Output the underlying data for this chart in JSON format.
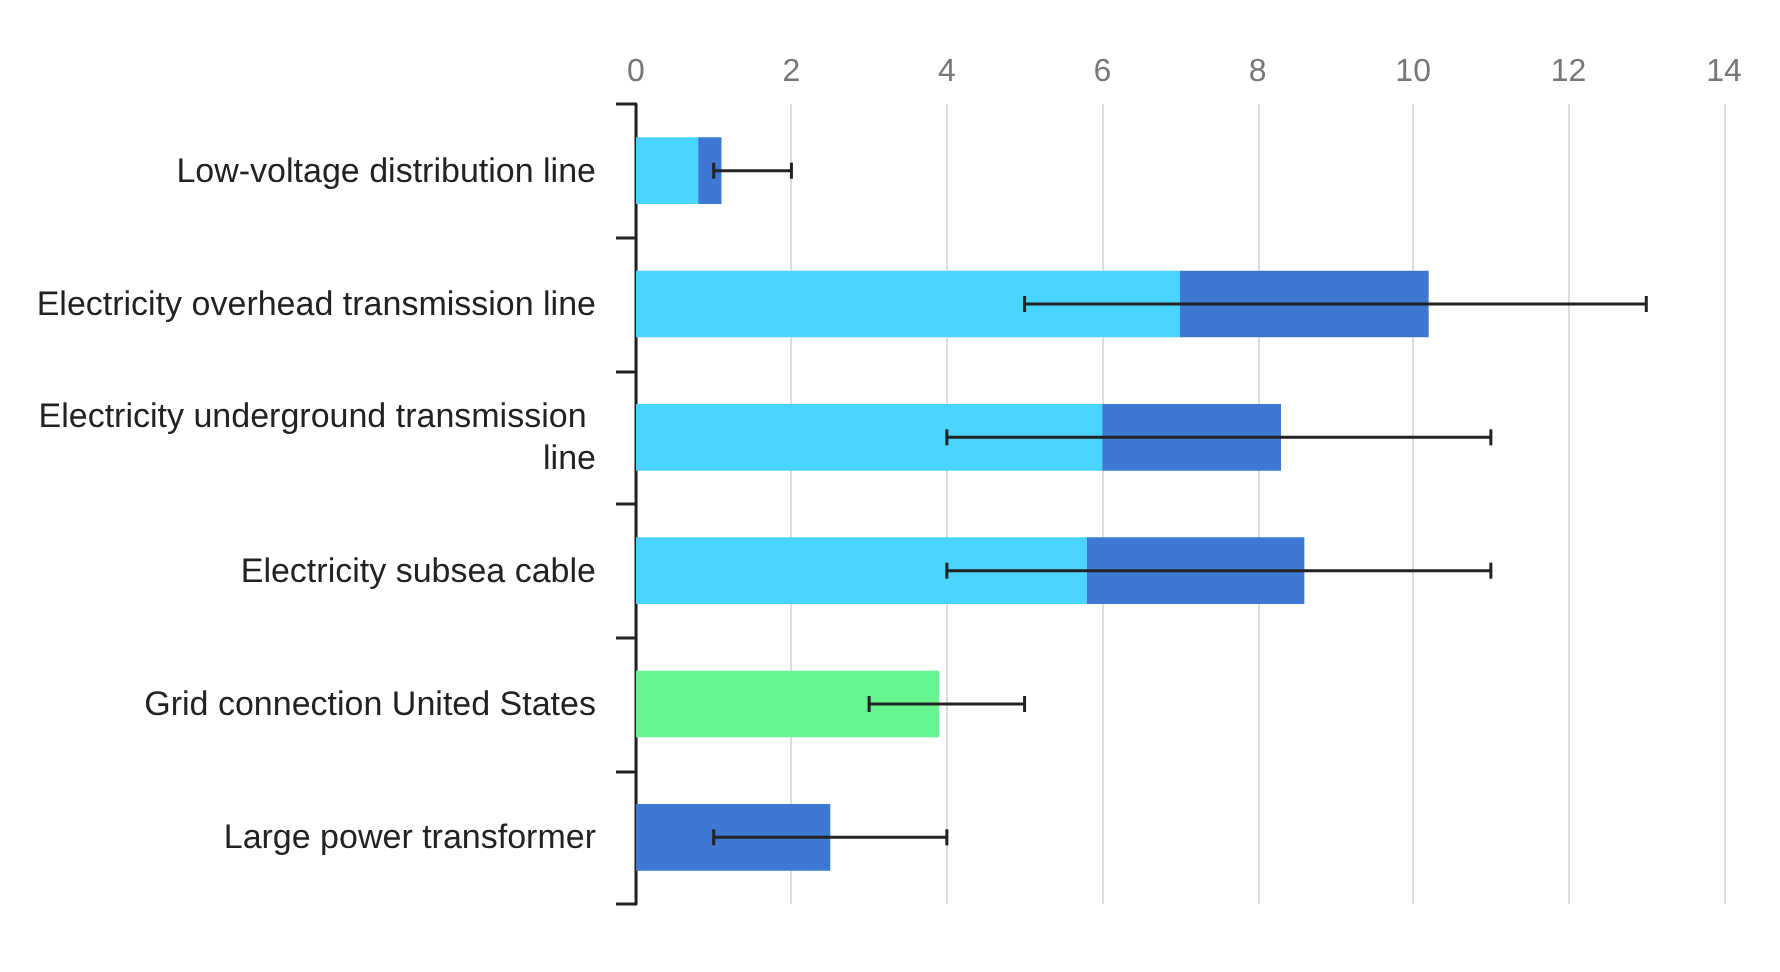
{
  "chart_data": {
    "type": "bar",
    "orientation": "horizontal",
    "stacked": true,
    "categories": [
      "Low-voltage distribution line",
      "Electricity overhead transmission line",
      "Electricity underground transmission line",
      "Electricity subsea cable",
      "Grid connection United States",
      "Large power transformer"
    ],
    "series": [
      {
        "color": "#48d4fe",
        "values": [
          0.8,
          7.0,
          6.0,
          5.8,
          null,
          null
        ]
      },
      {
        "color": "#3d78d4",
        "values": [
          0.3,
          3.2,
          2.3,
          2.8,
          null,
          2.5
        ],
        "errors": [
          [
            1,
            2
          ],
          [
            5,
            13
          ],
          [
            4,
            11
          ],
          [
            4,
            11
          ],
          null,
          [
            1,
            4
          ]
        ]
      },
      {
        "color": "#66f593",
        "values": [
          null,
          null,
          null,
          null,
          3.9,
          null
        ],
        "errors": [
          null,
          null,
          null,
          null,
          [
            3,
            5
          ],
          null
        ]
      }
    ],
    "xlim": [
      0,
      14
    ],
    "xticks": [
      0,
      2,
      4,
      6,
      8,
      10,
      12,
      14
    ],
    "grid": "x"
  }
}
